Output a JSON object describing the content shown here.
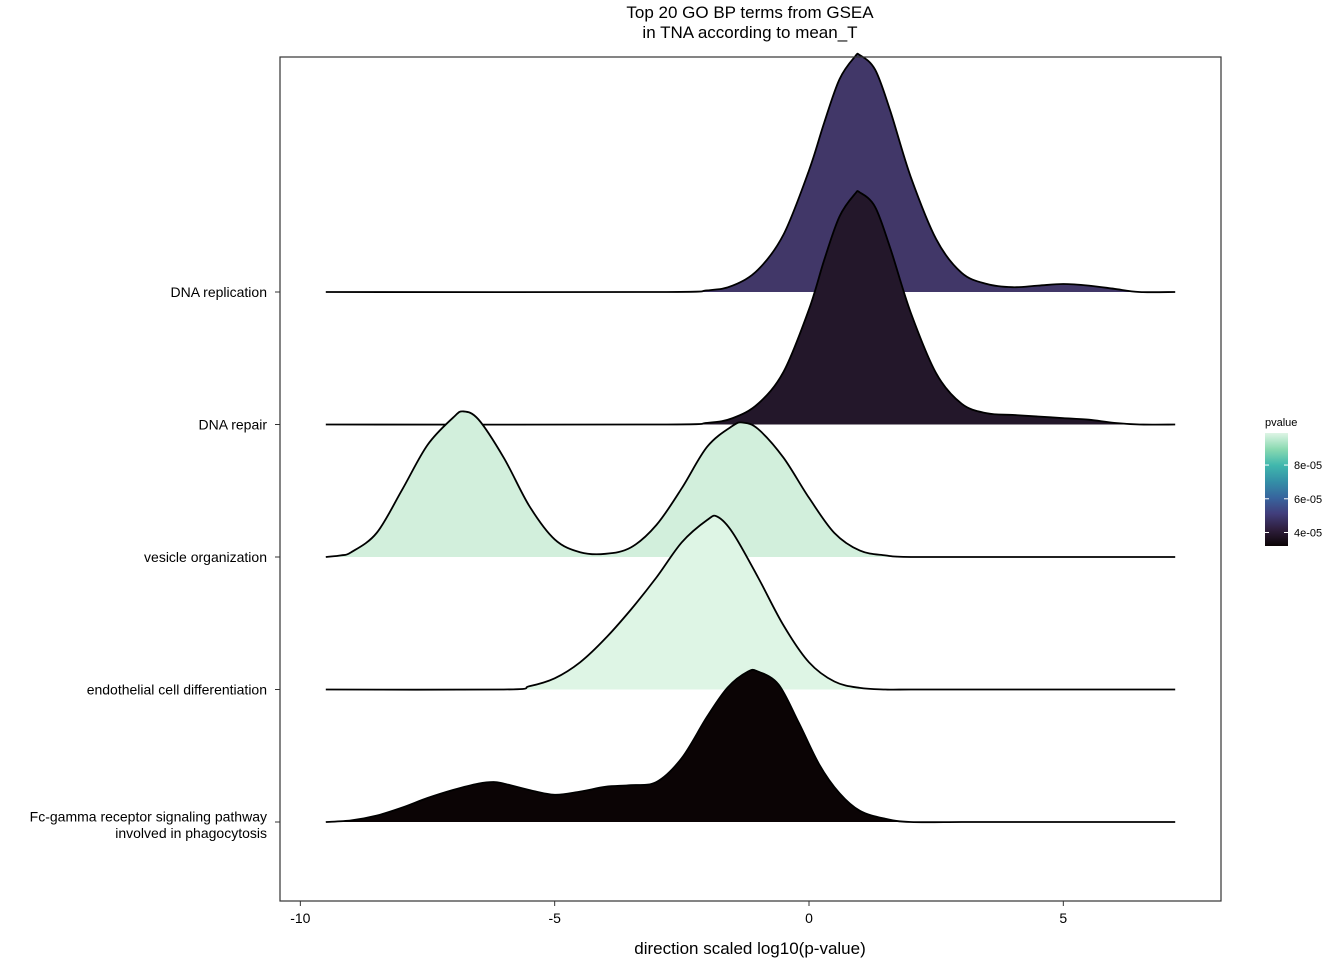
{
  "chart_data": {
    "type": "ridgeline",
    "title_line1": "Top 20 GO BP terms from GSEA",
    "title_line2": "in TNA according to mean_T",
    "xlabel": "direction scaled log10(p-value)",
    "xlim": [
      -10.4,
      8.1
    ],
    "x_ticks": [
      {
        "value": -10,
        "label": "-10"
      },
      {
        "value": -5,
        "label": "-5"
      },
      {
        "value": 0,
        "label": "0"
      },
      {
        "value": 5,
        "label": "5"
      }
    ],
    "grid": false,
    "legend": {
      "title": "pvalue",
      "position": "right",
      "range": [
        3.2e-05,
        9.9e-05
      ],
      "ticks": [
        {
          "value": 8e-05,
          "label": "8e-05"
        },
        {
          "value": 6e-05,
          "label": "6e-05"
        },
        {
          "value": 4e-05,
          "label": "4e-05"
        }
      ],
      "colors_low_to_high": [
        "#0b0405",
        "#2e1e3c",
        "#413d7b",
        "#37659e",
        "#348fa7",
        "#40b7ad",
        "#8ad9b1",
        "#def5e5"
      ]
    },
    "ridges": [
      {
        "label_line1": "Fc-gamma receptor signaling pathway",
        "label_line2": "involved in phagocytosis",
        "fill": "#0b0405",
        "x": [
          -9.5,
          -9.0,
          -8.5,
          -8.0,
          -7.5,
          -7.0,
          -6.5,
          -6.2,
          -6.0,
          -5.5,
          -5.0,
          -4.5,
          -4.0,
          -3.5,
          -3.0,
          -2.5,
          -2.0,
          -1.6,
          -1.2,
          -1.0,
          -0.6,
          -0.2,
          0.2,
          0.6,
          1.0,
          1.5,
          2.0,
          3.0,
          4.0,
          5.0,
          6.0,
          7.2
        ],
        "density": [
          0.0,
          0.01,
          0.04,
          0.09,
          0.15,
          0.2,
          0.24,
          0.25,
          0.24,
          0.2,
          0.17,
          0.19,
          0.22,
          0.23,
          0.25,
          0.4,
          0.66,
          0.84,
          0.94,
          0.94,
          0.86,
          0.62,
          0.36,
          0.18,
          0.07,
          0.02,
          0.0,
          0.0,
          0.0,
          0.0,
          0.0,
          0.0
        ]
      },
      {
        "label": "endothelial cell differentiation",
        "fill": "#def5e5",
        "x": [
          -9.5,
          -6.0,
          -5.5,
          -5.0,
          -4.5,
          -4.0,
          -3.5,
          -3.0,
          -2.5,
          -2.0,
          -1.8,
          -1.5,
          -1.0,
          -0.5,
          0.0,
          0.5,
          1.0,
          1.5,
          2.0,
          3.0,
          5.0,
          7.2
        ],
        "density": [
          0.0,
          0.0,
          0.02,
          0.07,
          0.17,
          0.32,
          0.5,
          0.7,
          0.92,
          1.06,
          1.08,
          0.98,
          0.7,
          0.4,
          0.17,
          0.05,
          0.01,
          0.0,
          0.0,
          0.0,
          0.0,
          0.0
        ]
      },
      {
        "label": "vesicle organization",
        "fill": "#d2efdc",
        "x": [
          -9.5,
          -9.2,
          -9.0,
          -8.5,
          -8.0,
          -7.5,
          -7.0,
          -6.8,
          -6.5,
          -6.0,
          -5.5,
          -5.0,
          -4.5,
          -4.0,
          -3.5,
          -3.0,
          -2.5,
          -2.0,
          -1.5,
          -1.3,
          -1.0,
          -0.5,
          0.0,
          0.5,
          1.0,
          1.5,
          2.0,
          4.0,
          7.2
        ],
        "density": [
          0.0,
          0.01,
          0.03,
          0.15,
          0.42,
          0.7,
          0.87,
          0.91,
          0.86,
          0.62,
          0.32,
          0.11,
          0.03,
          0.02,
          0.06,
          0.2,
          0.43,
          0.69,
          0.82,
          0.84,
          0.8,
          0.62,
          0.37,
          0.15,
          0.04,
          0.01,
          0.0,
          0.0,
          0.0
        ]
      },
      {
        "label": "DNA repair",
        "fill": "#23172a",
        "x": [
          -9.5,
          -3.0,
          -2.0,
          -1.5,
          -1.0,
          -0.5,
          0.0,
          0.3,
          0.6,
          0.9,
          1.0,
          1.3,
          1.6,
          2.0,
          2.5,
          3.0,
          3.5,
          4.0,
          4.5,
          5.0,
          5.5,
          6.0,
          6.5,
          7.2
        ],
        "density": [
          0.0,
          0.0,
          0.01,
          0.04,
          0.13,
          0.33,
          0.72,
          1.03,
          1.3,
          1.44,
          1.45,
          1.36,
          1.1,
          0.7,
          0.32,
          0.13,
          0.07,
          0.06,
          0.05,
          0.04,
          0.03,
          0.01,
          0.0,
          0.0
        ]
      },
      {
        "label": "DNA replication",
        "fill": "#413768",
        "x": [
          -9.5,
          -3.0,
          -2.0,
          -1.5,
          -1.0,
          -0.5,
          0.0,
          0.3,
          0.6,
          0.9,
          1.0,
          1.3,
          1.6,
          2.0,
          2.5,
          3.0,
          3.5,
          4.0,
          4.5,
          5.0,
          5.5,
          6.0,
          6.5,
          7.2
        ],
        "density": [
          0.0,
          0.0,
          0.01,
          0.04,
          0.14,
          0.36,
          0.76,
          1.06,
          1.33,
          1.47,
          1.48,
          1.39,
          1.13,
          0.72,
          0.33,
          0.12,
          0.05,
          0.03,
          0.04,
          0.05,
          0.04,
          0.02,
          0.0,
          0.0
        ]
      }
    ]
  }
}
